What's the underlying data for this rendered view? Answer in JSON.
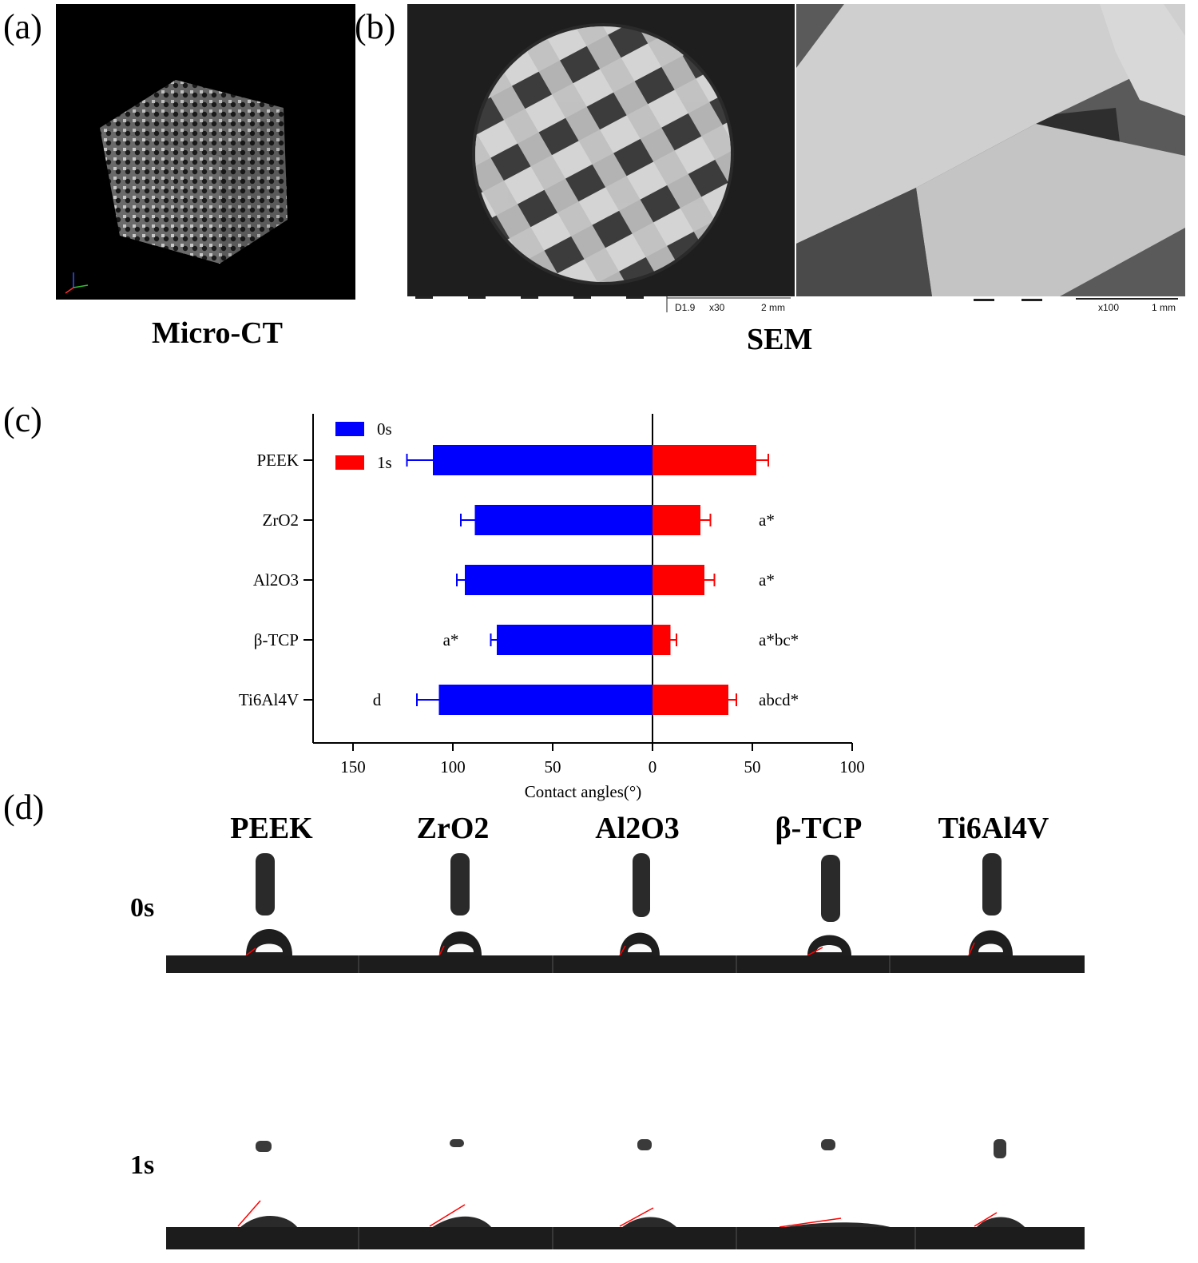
{
  "panels": {
    "a": {
      "letter": "(a)",
      "caption": "Micro-CT"
    },
    "b": {
      "letter": "(b)",
      "caption": "SEM",
      "left_scale": {
        "code": "D1.9",
        "mag": "x30",
        "bar": "2 mm"
      },
      "right_scale": {
        "mag": "x100",
        "bar": "1 mm"
      }
    },
    "c": {
      "letter": "(c)"
    },
    "d": {
      "letter": "(d)",
      "materials": [
        "PEEK",
        "ZrO2",
        "Al2O3",
        "β-TCP",
        "Ti6Al4V"
      ],
      "times": [
        "0s",
        "1s"
      ]
    }
  },
  "chart_data": {
    "type": "bar",
    "orientation": "horizontal-butterfly",
    "categories": [
      "PEEK",
      "ZrO2",
      "Al2O3",
      "β-TCP",
      "Ti6Al4V"
    ],
    "series": [
      {
        "name": "0s",
        "color": "#0000ff",
        "side": "left",
        "values": [
          110,
          89,
          94,
          78,
          107
        ],
        "errors": [
          13,
          7,
          4,
          3,
          11
        ],
        "annotations": [
          "",
          "",
          "",
          "a*",
          "d"
        ]
      },
      {
        "name": "1s",
        "color": "#ff0000",
        "side": "right",
        "values": [
          52,
          24,
          26,
          9,
          38
        ],
        "errors": [
          6,
          5,
          5,
          3,
          4
        ],
        "annotations": [
          "",
          "a*",
          "a*",
          "a*bc*",
          "abcd*"
        ]
      }
    ],
    "xlabel": "Contact angles(°)",
    "xticks_left": [
      "150",
      "100",
      "50"
    ],
    "xticks_right": [
      "0",
      "50",
      "100"
    ],
    "xlim_left": [
      0,
      170
    ],
    "xlim_right": [
      0,
      100
    ],
    "legend": "top-left"
  },
  "colors": {
    "blue": "#0000ff",
    "red": "#ff0000"
  }
}
